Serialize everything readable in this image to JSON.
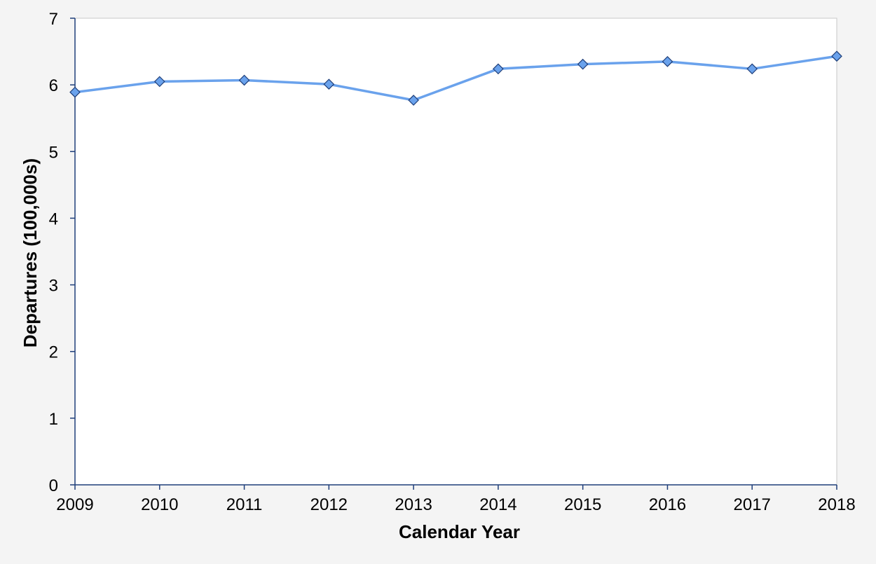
{
  "chart_data": {
    "type": "line",
    "title": "",
    "xlabel": "Calendar Year",
    "ylabel": "Departures (100,000s)",
    "x": [
      "2009",
      "2010",
      "2011",
      "2012",
      "2013",
      "2014",
      "2015",
      "2016",
      "2017",
      "2018"
    ],
    "series": [
      {
        "values": [
          5.89,
          6.05,
          6.07,
          6.01,
          5.77,
          6.24,
          6.31,
          6.35,
          6.24,
          6.43
        ]
      }
    ],
    "ylim": [
      0,
      7
    ],
    "yticks": [
      "0",
      "1",
      "2",
      "3",
      "4",
      "5",
      "6",
      "7"
    ],
    "grid": false,
    "legend": "none",
    "marker": "diamond",
    "colors": {
      "line": "#6aa2ec",
      "marker_fill": "#6aa2ec",
      "marker_stroke": "#1f3f7a",
      "axis": "#1f3f7a",
      "plot_background": "#ffffff",
      "page_background": "#f4f4f4"
    }
  }
}
